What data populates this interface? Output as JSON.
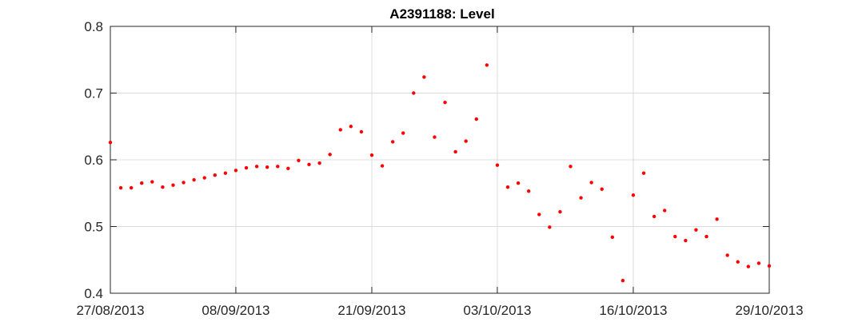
{
  "chart_data": {
    "type": "scatter",
    "title": "A2391188: Level",
    "xlabel": "",
    "ylabel": "",
    "ylim": [
      0.4,
      0.8
    ],
    "yticks": [
      "0.4",
      "0.5",
      "0.6",
      "0.7",
      "0.8"
    ],
    "xlim": [
      "2013-08-27",
      "2013-10-29"
    ],
    "xticks": [
      "27/08/2013",
      "08/09/2013",
      "21/09/2013",
      "03/10/2013",
      "16/10/2013",
      "29/10/2013"
    ],
    "grid": true,
    "marker_color": "#ff0000",
    "series": [
      {
        "x": [
          "2013-08-27",
          "2013-08-28",
          "2013-08-29",
          "2013-08-30",
          "2013-08-31",
          "2013-09-01",
          "2013-09-02",
          "2013-09-03",
          "2013-09-04",
          "2013-09-05",
          "2013-09-06",
          "2013-09-07",
          "2013-09-08",
          "2013-09-09",
          "2013-09-10",
          "2013-09-11",
          "2013-09-12",
          "2013-09-13",
          "2013-09-14",
          "2013-09-15",
          "2013-09-16",
          "2013-09-17",
          "2013-09-18",
          "2013-09-19",
          "2013-09-20",
          "2013-09-21",
          "2013-09-22",
          "2013-09-23",
          "2013-09-24",
          "2013-09-25",
          "2013-09-26",
          "2013-09-27",
          "2013-09-28",
          "2013-09-29",
          "2013-09-30",
          "2013-10-01",
          "2013-10-02",
          "2013-10-03",
          "2013-10-04",
          "2013-10-05",
          "2013-10-06",
          "2013-10-07",
          "2013-10-08",
          "2013-10-09",
          "2013-10-10",
          "2013-10-11",
          "2013-10-12",
          "2013-10-13",
          "2013-10-14",
          "2013-10-15",
          "2013-10-16",
          "2013-10-17",
          "2013-10-18",
          "2013-10-19",
          "2013-10-20",
          "2013-10-21",
          "2013-10-22",
          "2013-10-23",
          "2013-10-24",
          "2013-10-25",
          "2013-10-26",
          "2013-10-27",
          "2013-10-28",
          "2013-10-29"
        ],
        "y": [
          0.626,
          0.558,
          0.558,
          0.565,
          0.567,
          0.559,
          0.562,
          0.566,
          0.57,
          0.573,
          0.577,
          0.58,
          0.584,
          0.588,
          0.59,
          0.589,
          0.59,
          0.587,
          0.599,
          0.593,
          0.595,
          0.608,
          0.645,
          0.65,
          0.642,
          0.607,
          0.591,
          0.627,
          0.64,
          0.7,
          0.724,
          0.634,
          0.686,
          0.612,
          0.628,
          0.661,
          0.742,
          0.592,
          0.559,
          0.565,
          0.553,
          0.518,
          0.499,
          0.522,
          0.59,
          0.543,
          0.566,
          0.556,
          0.484,
          0.419,
          0.547,
          0.58,
          0.515,
          0.524,
          0.485,
          0.479,
          0.495,
          0.485,
          0.511,
          0.457,
          0.447,
          0.44,
          0.445,
          0.441
        ]
      }
    ]
  }
}
